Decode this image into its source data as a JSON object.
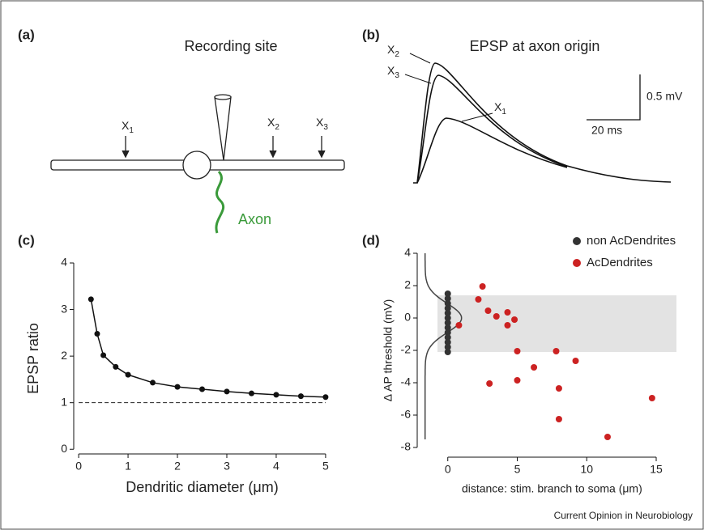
{
  "panel_a": {
    "label": "(a)",
    "title": "Recording site",
    "sites": [
      {
        "text": "X",
        "sub": "1"
      },
      {
        "text": "X",
        "sub": "2"
      },
      {
        "text": "X",
        "sub": "3"
      }
    ],
    "axon": "Axon"
  },
  "panel_b": {
    "label": "(b)",
    "title": "EPSP at axon origin",
    "traces": [
      {
        "text": "X",
        "sub": "2"
      },
      {
        "text": "X",
        "sub": "3"
      },
      {
        "text": "X",
        "sub": "1"
      }
    ],
    "scale_v": "0.5 mV",
    "scale_t": "20 ms"
  },
  "chart_data": [
    {
      "type": "line",
      "label": "(c)",
      "ylabel": "EPSP ratio",
      "xlabel": "Dendritic diameter (μm)",
      "x": [
        0.25,
        0.375,
        0.5,
        0.75,
        1,
        1.5,
        2,
        2.5,
        3,
        3.5,
        4,
        4.5,
        5
      ],
      "values": [
        3.22,
        2.48,
        2.02,
        1.77,
        1.6,
        1.43,
        1.34,
        1.29,
        1.24,
        1.2,
        1.17,
        1.14,
        1.12
      ],
      "color": "#111111",
      "reference_line": 1,
      "xlim": [
        -0.1,
        5.1
      ],
      "ylim": [
        -0.1,
        4
      ],
      "xticks": [
        0,
        1,
        2,
        3,
        4,
        5
      ],
      "yticks": [
        0,
        1,
        2,
        3,
        4
      ]
    },
    {
      "type": "scatter",
      "label": "(d)",
      "ylabel": "Δ AP threshold (mV)",
      "xlabel": "distance: stim. branch to soma (μm)",
      "band": [
        -2.1,
        1.4
      ],
      "legend": "top-right",
      "series": [
        {
          "name": "non AcDendrites",
          "color": "#333333",
          "x": [
            0,
            0,
            0,
            0,
            0,
            0,
            0,
            0,
            0,
            0,
            0,
            0,
            0
          ],
          "values": [
            1.5,
            1.2,
            0.9,
            0.6,
            0.3,
            0,
            -0.3,
            -0.6,
            -0.9,
            -1.2,
            -1.5,
            -1.8,
            -2.1
          ]
        },
        {
          "name": "AcDendrites",
          "color": "#cc2222",
          "x": [
            0.8,
            2.2,
            2.5,
            2.9,
            3.5,
            4.3,
            4.3,
            4.8,
            5.0,
            6.2,
            7.8,
            8.0,
            9.2,
            5.0,
            3.0,
            8.0,
            14.7,
            11.5
          ],
          "values": [
            -0.45,
            1.15,
            1.95,
            0.45,
            0.1,
            0.35,
            -0.45,
            -0.1,
            -2.05,
            -3.05,
            -2.05,
            -4.35,
            -2.65,
            -3.85,
            -4.05,
            -6.25,
            -4.95,
            -7.35
          ]
        }
      ],
      "xlim": [
        -2.2,
        15
      ],
      "ylim": [
        -8,
        4
      ],
      "xticks": [
        0,
        5,
        10,
        15
      ],
      "yticks": [
        4,
        2,
        0,
        -2,
        -4,
        -6,
        -8
      ]
    }
  ],
  "footer": "Current Opinion in Neurobiology"
}
